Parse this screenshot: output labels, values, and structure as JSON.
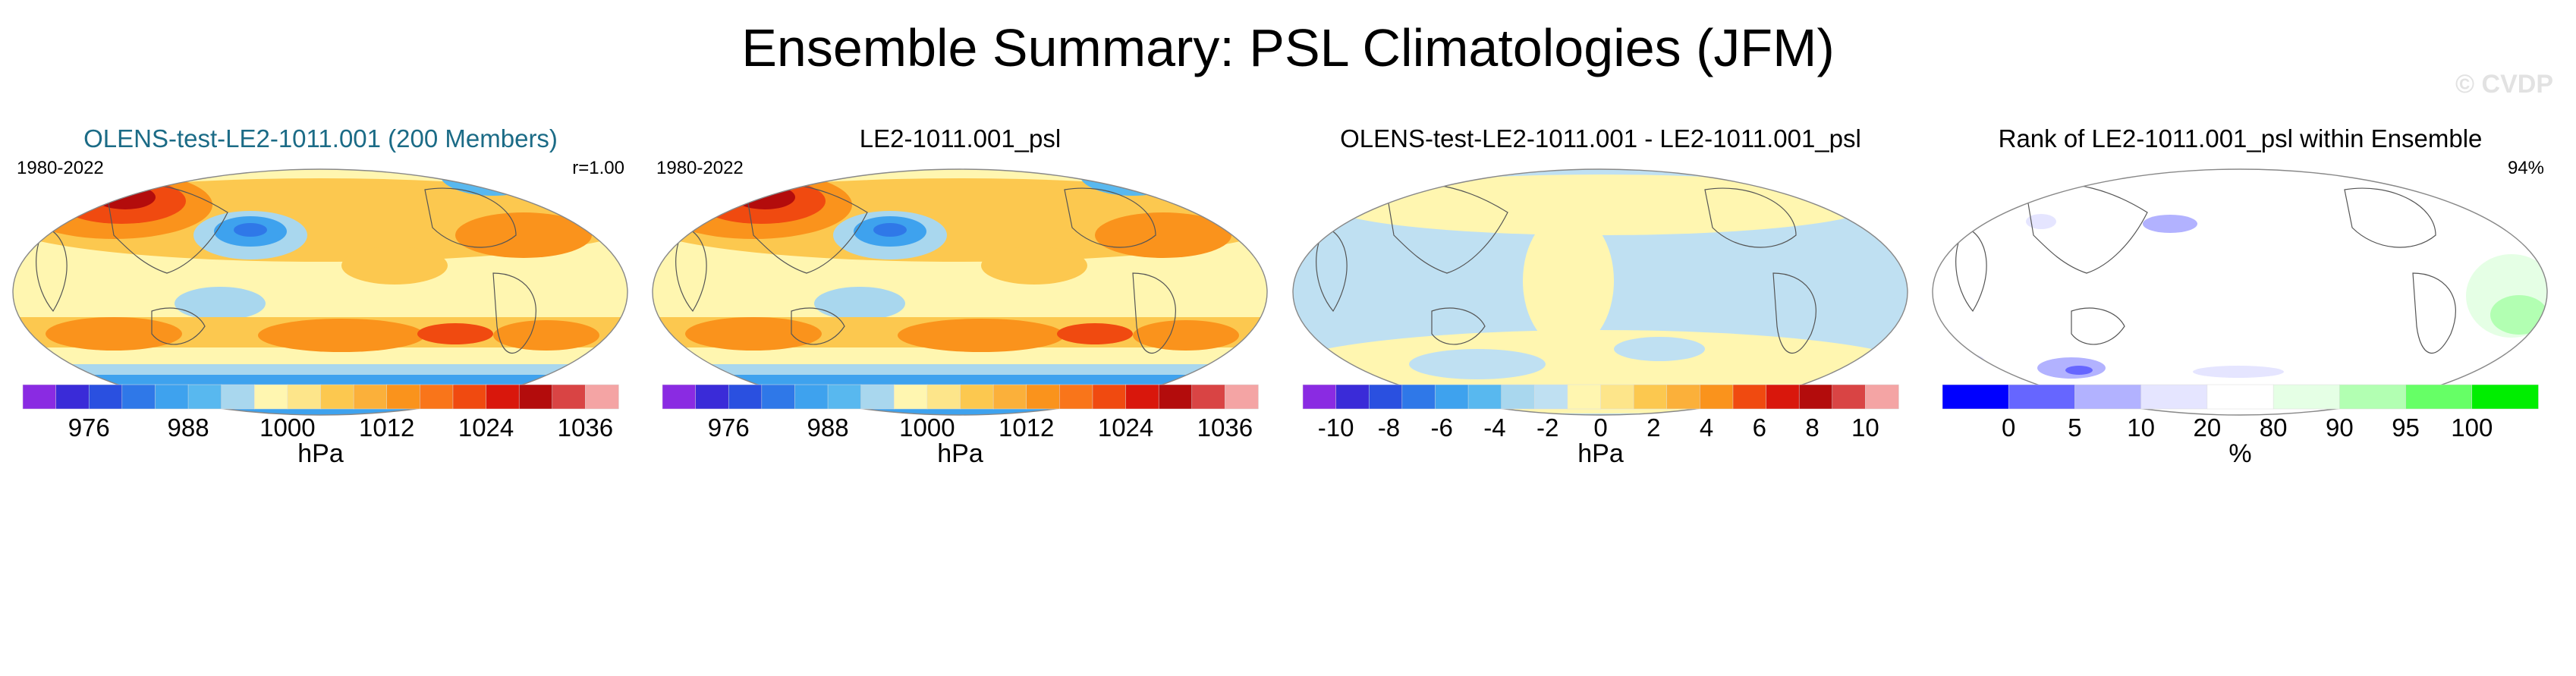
{
  "page": {
    "title": "Ensemble Summary: PSL Climatologies (JFM)",
    "watermark": "© CVDP"
  },
  "panels": [
    {
      "title": "OLENS-test-LE2-1011.001 (200 Members)",
      "left_label": "1980-2022",
      "right_label": "r=1.00",
      "colorbar": {
        "colors": [
          "#8a2be2",
          "#3a2bd8",
          "#2a50e0",
          "#2f78e8",
          "#3ea2ee",
          "#58b8ef",
          "#a9d7ee",
          "#fff6b0",
          "#fde58a",
          "#fcc84f",
          "#fbb03a",
          "#fa931c",
          "#f9751a",
          "#f04a10",
          "#d9170c",
          "#b30c0c",
          "#d94444",
          "#f4a4a4"
        ],
        "labels": [
          "976",
          "988",
          "1000",
          "1012",
          "1024",
          "1036"
        ],
        "unit": "hPa"
      }
    },
    {
      "title": "LE2-1011.001_psl",
      "left_label": "1980-2022",
      "right_label": "",
      "colorbar": {
        "colors": [
          "#8a2be2",
          "#3a2bd8",
          "#2a50e0",
          "#2f78e8",
          "#3ea2ee",
          "#58b8ef",
          "#a9d7ee",
          "#fff6b0",
          "#fde58a",
          "#fcc84f",
          "#fbb03a",
          "#fa931c",
          "#f9751a",
          "#f04a10",
          "#d9170c",
          "#b30c0c",
          "#d94444",
          "#f4a4a4"
        ],
        "labels": [
          "976",
          "988",
          "1000",
          "1012",
          "1024",
          "1036"
        ],
        "unit": "hPa"
      }
    },
    {
      "title": "OLENS-test-LE2-1011.001 - LE2-1011.001_psl",
      "left_label": "",
      "right_label": "",
      "colorbar": {
        "colors": [
          "#8a2be2",
          "#3a2bd8",
          "#2a50e0",
          "#2f78e8",
          "#3ea2ee",
          "#58b8ef",
          "#a9d7ee",
          "#bfe0f2",
          "#fff6b0",
          "#fde58a",
          "#fcc84f",
          "#fbb03a",
          "#fa931c",
          "#f04a10",
          "#d9170c",
          "#b30c0c",
          "#d94444",
          "#f4a4a4"
        ],
        "labels": [
          "-10",
          "-8",
          "-6",
          "-4",
          "-2",
          "0",
          "2",
          "4",
          "6",
          "8",
          "10"
        ],
        "unit": "hPa"
      }
    },
    {
      "title": "Rank of LE2-1011.001_psl within Ensemble",
      "left_label": "",
      "right_label": "94%",
      "colorbar": {
        "colors": [
          "#0000ff",
          "#6666ff",
          "#b2b2ff",
          "#e5e5ff",
          "#ffffff",
          "#e5ffe5",
          "#b2ffb2",
          "#66ff66",
          "#00ee00"
        ],
        "labels": [
          "0",
          "5",
          "10",
          "20",
          "80",
          "90",
          "95",
          "100"
        ],
        "unit": "%"
      }
    }
  ],
  "chart_data": {
    "type": "heatmap",
    "title": "Ensemble Summary: PSL Climatologies (JFM)",
    "panels": [
      {
        "title": "OLENS-test-LE2-1011.001 (200 Members)",
        "period": "1980-2022",
        "pattern_correlation": 1.0,
        "variable": "PSL",
        "units": "hPa",
        "contour_range": [
          970,
          1040
        ],
        "contour_interval": 4
      },
      {
        "title": "LE2-1011.001_psl",
        "period": "1980-2022",
        "variable": "PSL",
        "units": "hPa",
        "contour_range": [
          970,
          1040
        ],
        "contour_interval": 4
      },
      {
        "title": "OLENS-test-LE2-1011.001 - LE2-1011.001_psl",
        "variable": "PSL difference",
        "units": "hPa",
        "contour_range": [
          -10,
          10
        ],
        "contour_interval": 1
      },
      {
        "title": "Rank of LE2-1011.001_psl within Ensemble",
        "variable": "rank",
        "units": "%",
        "bins": [
          0,
          5,
          10,
          20,
          80,
          90,
          95,
          100
        ],
        "area_within_10_90_pct": 94
      }
    ]
  }
}
